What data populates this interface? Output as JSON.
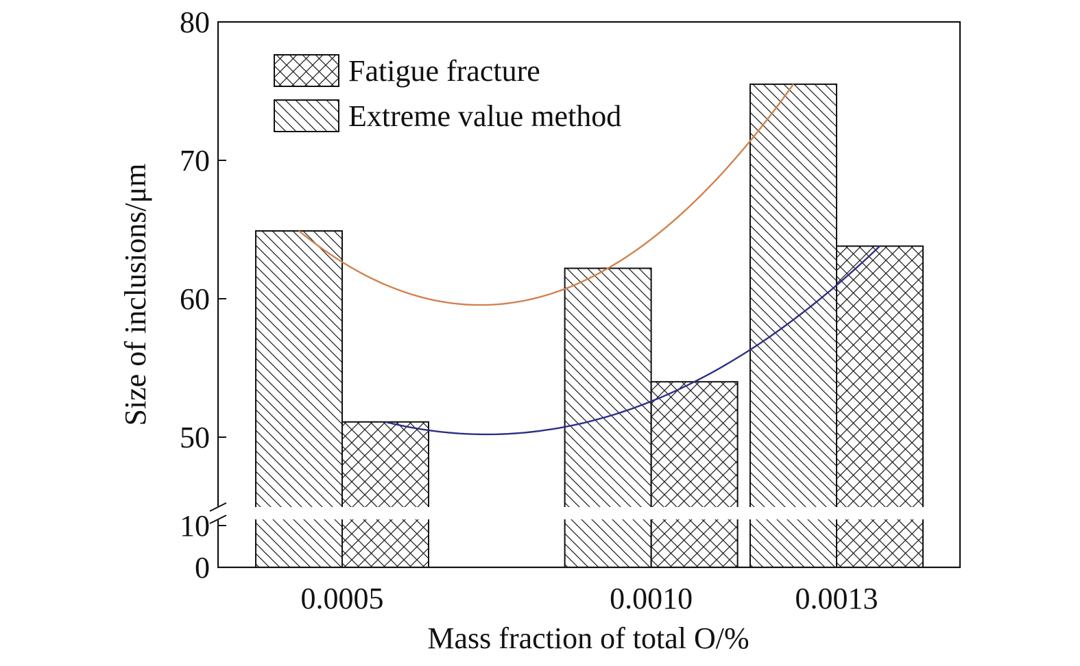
{
  "chart_data": {
    "type": "bar",
    "xlabel": "Mass fraction of total O/%",
    "ylabel": "Size of inclusions/μm",
    "categories": [
      "0.0005",
      "0.0010",
      "0.0013"
    ],
    "x": [
      0.0005,
      0.001,
      0.0013
    ],
    "y_axis": {
      "broken": true,
      "lower_segment": [
        0,
        10
      ],
      "upper_segment": [
        45,
        80
      ],
      "ticks": [
        0,
        10,
        50,
        60,
        70,
        80
      ]
    },
    "series": [
      {
        "name": "Extreme value method",
        "pattern": "diagonal-hatch",
        "values": [
          64.9,
          62.2,
          75.5
        ]
      },
      {
        "name": "Fatigue fracture",
        "pattern": "cross-hatch",
        "values": [
          51.1,
          54.0,
          63.8
        ]
      }
    ],
    "fit_curves": [
      {
        "series": "Extreme value method",
        "color": "#d2824f"
      },
      {
        "series": "Fatigue fracture",
        "color": "#2f2f86"
      }
    ],
    "legend": {
      "placement": "top-left",
      "entries": [
        {
          "label": "Fatigue fracture",
          "pattern": "cross-hatch"
        },
        {
          "label": "Extreme value method",
          "pattern": "diagonal-hatch"
        }
      ]
    },
    "grid": false
  }
}
